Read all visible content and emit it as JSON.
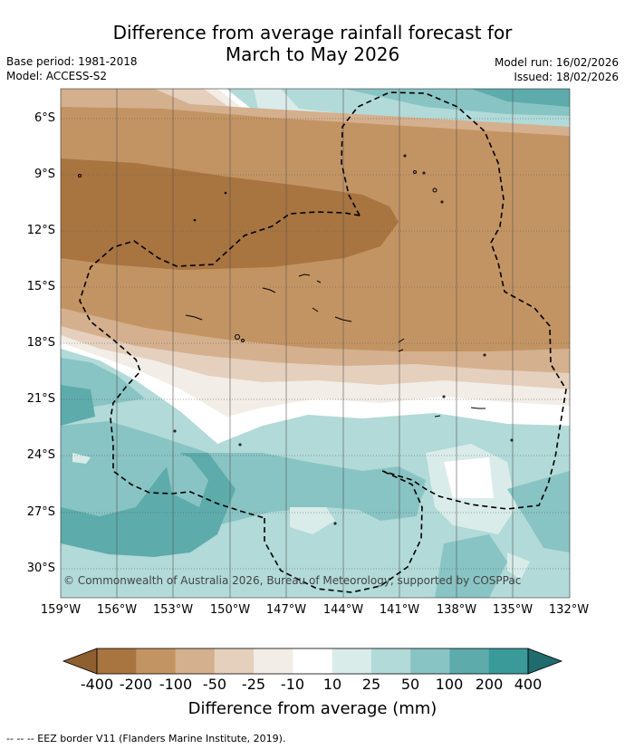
{
  "title": {
    "line1": "Difference from average rainfall forecast for",
    "line2": "March to May 2026"
  },
  "meta": {
    "base_period": "Base period: 1981-2018",
    "model": "Model: ACCESS-S2",
    "model_run": "Model run: 16/02/2026",
    "issued": "Issued: 18/02/2026"
  },
  "axes": {
    "lat_labels": [
      "6°S",
      "9°S",
      "12°S",
      "15°S",
      "18°S",
      "21°S",
      "24°S",
      "27°S",
      "30°S"
    ],
    "lon_labels": [
      "159°W",
      "156°W",
      "153°W",
      "150°W",
      "147°W",
      "144°W",
      "141°W",
      "138°W",
      "135°W",
      "132°W"
    ]
  },
  "copyright": "© Commonwealth of Australia 2026, Bureau of Meteorology, supported by COSPPac",
  "colorbar": {
    "title": "Difference from average (mm)",
    "labels": [
      "-400",
      "-200",
      "-100",
      "-50",
      "-25",
      "-10",
      "10",
      "25",
      "50",
      "100",
      "200",
      "400"
    ],
    "colors": [
      "#a87440",
      "#c39463",
      "#d5b08e",
      "#e5d0bd",
      "#f2ede6",
      "#ffffff",
      "#d9ecea",
      "#b1dad8",
      "#88c4c3",
      "#5eabab",
      "#3a9a99",
      "#2b7e80"
    ]
  },
  "legend_note": "--  --  -- EEZ border V11 (Flanders Marine Institute, 2019)."
}
